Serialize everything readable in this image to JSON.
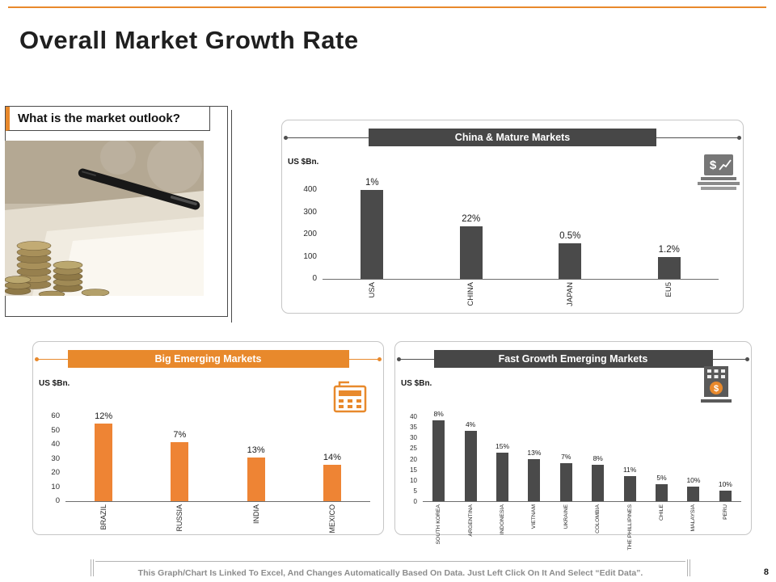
{
  "slide": {
    "title": "Overall Market Growth Rate",
    "page_number": "8",
    "footer_note": "This Graph/Chart Is Linked To Excel, And Changes Automatically Based On Data. Just Left Click On It And Select “Edit Data”."
  },
  "left_panel": {
    "heading": "What is the market outlook?",
    "photo": "coins-and-pen-photo"
  },
  "colors": {
    "accent_orange": "#E8892C",
    "dark": "#474747",
    "bar_dark": "#4a4a4a",
    "bar_orange": "#EE8434",
    "panel_border": "#c6c6c6",
    "footer_gray": "#8c8c8c"
  },
  "icons": {
    "panel1": "laptop-dollar-icon",
    "panel2": "calculator-icon",
    "panel3": "kiosk-dollar-icon"
  },
  "chart_data": [
    {
      "type": "bar",
      "title": "China & Mature Markets",
      "ylabel": "US $Bn.",
      "categories": [
        "USA",
        "CHINA",
        "JAPAN",
        "EU5"
      ],
      "values": [
        400,
        235,
        160,
        100
      ],
      "labels": [
        "1%",
        "22%",
        "0.5%",
        "1.2%"
      ],
      "yticks": [
        0,
        100,
        200,
        300,
        400
      ],
      "ylim": [
        0,
        400
      ],
      "bar_color": "#4a4a4a",
      "grid": false,
      "legend": "none"
    },
    {
      "type": "bar",
      "title": "Big Emerging Markets",
      "ylabel": "US $Bn.",
      "categories": [
        "BRAZIL",
        "RUSSIA",
        "INDIA",
        "MEXICO"
      ],
      "values": [
        55,
        42,
        31,
        26
      ],
      "labels": [
        "12%",
        "7%",
        "13%",
        "14%"
      ],
      "yticks": [
        0,
        10,
        20,
        30,
        40,
        50,
        60
      ],
      "ylim": [
        0,
        60
      ],
      "bar_color": "#EE8434",
      "grid": false,
      "legend": "none"
    },
    {
      "type": "bar",
      "title": "Fast Growth Emerging Markets",
      "ylabel": "US $Bn.",
      "categories": [
        "SOUTH KOREA",
        "ARGENTINA",
        "INDONESIA",
        "VIETNAM",
        "UKRAINE",
        "COLOMBIA",
        "THE PHILLIPINES",
        "CHILE",
        "MALAYSIA",
        "PERU"
      ],
      "values": [
        38,
        33,
        23,
        20,
        18,
        17,
        12,
        8,
        7,
        5
      ],
      "labels": [
        "8%",
        "4%",
        "15%",
        "13%",
        "7%",
        "8%",
        "11%",
        "5%",
        "10%",
        "10%"
      ],
      "yticks": [
        0,
        5,
        10,
        15,
        20,
        25,
        30,
        35,
        40
      ],
      "ylim": [
        0,
        40
      ],
      "bar_color": "#4a4a4a",
      "grid": false,
      "legend": "none"
    }
  ]
}
